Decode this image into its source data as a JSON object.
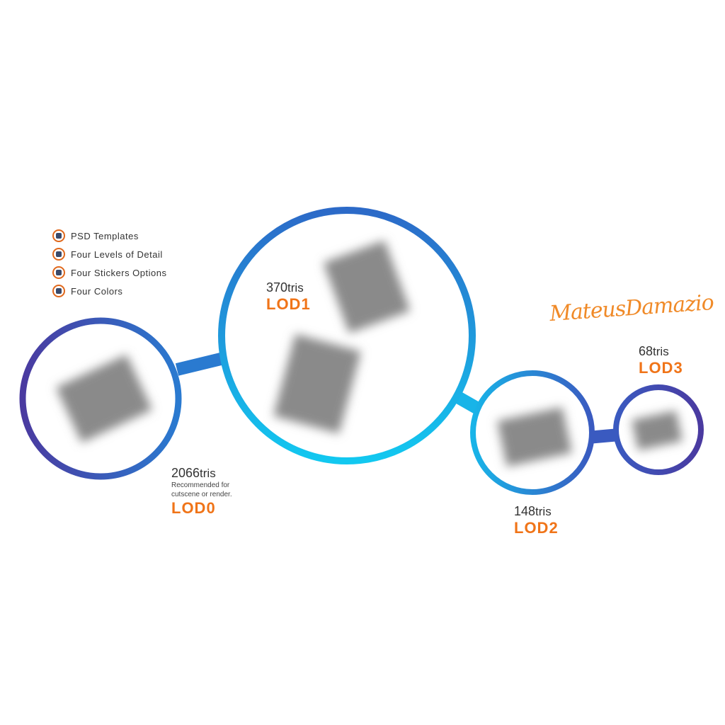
{
  "features": [
    {
      "label": "PSD Templates",
      "icon": "psd-icon"
    },
    {
      "label": "Four Levels of Detail",
      "icon": "lod-icon"
    },
    {
      "label": "Four Stickers Options",
      "icon": "sticker-icon"
    },
    {
      "label": "Four Colors",
      "icon": "color-icon"
    }
  ],
  "lods": [
    {
      "name": "LOD0",
      "tris": "2066",
      "unit": "tris",
      "desc_line1": "Recommended for",
      "desc_line2": "cutscene or render."
    },
    {
      "name": "LOD1",
      "tris": "370",
      "unit": "tris"
    },
    {
      "name": "LOD2",
      "tris": "148",
      "unit": "tris"
    },
    {
      "name": "LOD3",
      "tris": "68",
      "unit": "tris"
    }
  ],
  "signature": "MateusDamazio",
  "colors": {
    "accent": "#f07418",
    "ring_start": "#4a3aa0",
    "ring_end": "#12c8f0"
  }
}
